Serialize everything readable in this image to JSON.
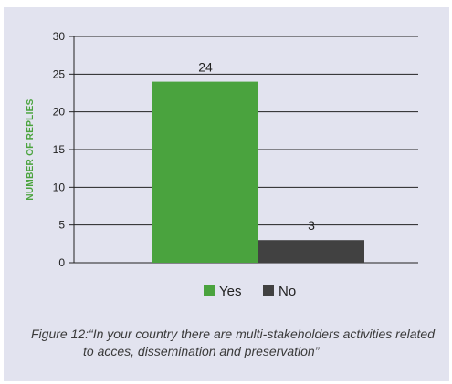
{
  "chart_data": {
    "type": "bar",
    "categories": [
      "Yes",
      "No"
    ],
    "values": [
      24,
      3
    ],
    "data_labels": [
      "24",
      "3"
    ],
    "colors": [
      "#4aa33e",
      "#414141"
    ],
    "ylabel": "NUMBER OF REPLIES",
    "xlabel": "",
    "ylim": [
      0,
      30
    ],
    "yticks": [
      "0",
      "5",
      "10",
      "15",
      "20",
      "25",
      "30"
    ],
    "grid": true,
    "legend_position": "bottom"
  },
  "caption": {
    "line1": "Figure 12:“In your country there are multi-stakeholders activities related",
    "line2": "to acces, dissemination and preservation”"
  }
}
